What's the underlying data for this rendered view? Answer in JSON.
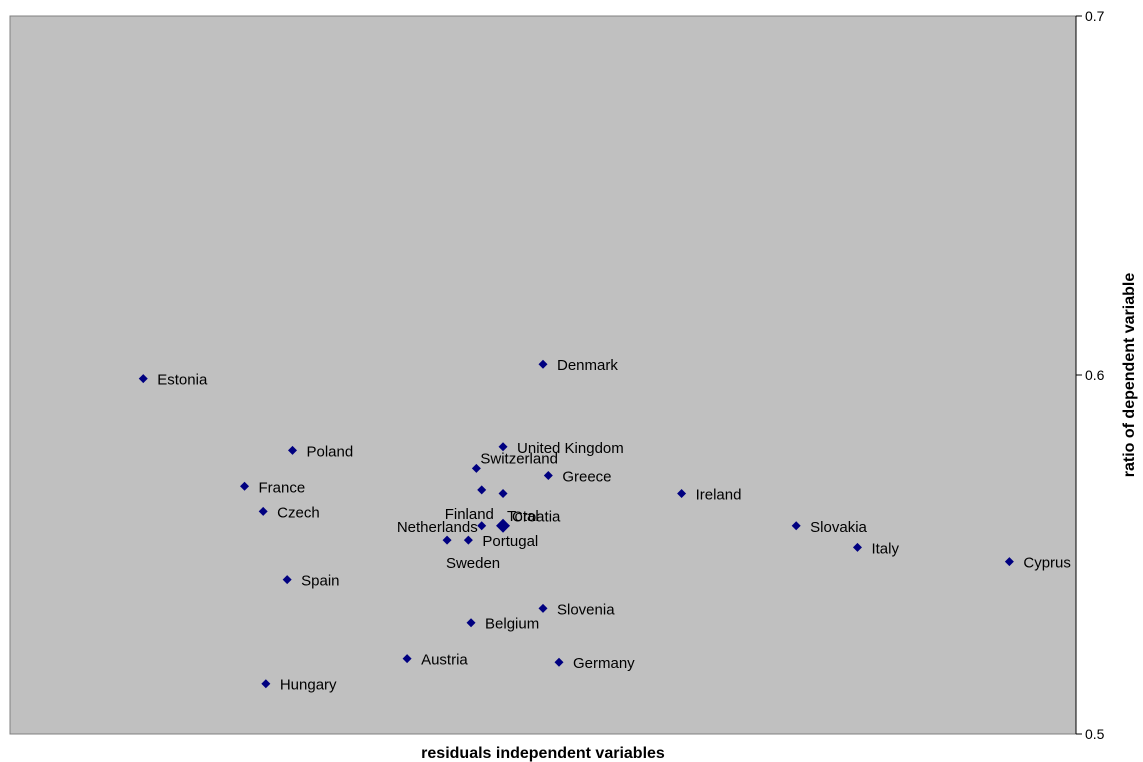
{
  "chart_data": {
    "type": "scatter",
    "title": "",
    "xlabel": "residuals independent variables",
    "ylabel": "ratio of dependent variable",
    "ylim": [
      0.5,
      0.7
    ],
    "yticks": [
      "0.5",
      "0.6",
      "0.7"
    ],
    "y_axis_side": "right",
    "x_axis_ticks": "none",
    "grid": false,
    "legend": "none",
    "colors": {
      "plot_background": "#c0c0c0",
      "marker": "#000080",
      "border": "#808080"
    },
    "points": [
      {
        "label": "Estonia",
        "x": -0.6,
        "y": 0.599,
        "label_pos": "right"
      },
      {
        "label": "Denmark",
        "x": 0.15,
        "y": 0.603,
        "label_pos": "right"
      },
      {
        "label": "Poland",
        "x": -0.32,
        "y": 0.579,
        "label_pos": "right"
      },
      {
        "label": "United Kingdom",
        "x": 0.075,
        "y": 0.58,
        "label_pos": "right"
      },
      {
        "label": "Switzerland",
        "x": 0.025,
        "y": 0.574,
        "label_pos": "right-up"
      },
      {
        "label": "Greece",
        "x": 0.16,
        "y": 0.572,
        "label_pos": "right"
      },
      {
        "label": "France",
        "x": -0.41,
        "y": 0.569,
        "label_pos": "right"
      },
      {
        "label": "Finland",
        "x": 0.035,
        "y": 0.568,
        "label_pos": "below-left"
      },
      {
        "label": "Croatia",
        "x": 0.075,
        "y": 0.567,
        "label_pos": "below-right"
      },
      {
        "label": "Ireland",
        "x": 0.41,
        "y": 0.567,
        "label_pos": "right"
      },
      {
        "label": "Czech",
        "x": -0.375,
        "y": 0.562,
        "label_pos": "right"
      },
      {
        "label": "Total",
        "x": 0.075,
        "y": 0.558,
        "label_pos": "right-up",
        "size": "large"
      },
      {
        "label": "Netherlands",
        "x": 0.035,
        "y": 0.558,
        "label_pos": "left"
      },
      {
        "label": "Slovakia",
        "x": 0.625,
        "y": 0.558,
        "label_pos": "right"
      },
      {
        "label": "Sweden",
        "x": -0.03,
        "y": 0.554,
        "label_pos": "below"
      },
      {
        "label": "Portugal",
        "x": 0.01,
        "y": 0.554,
        "label_pos": "right"
      },
      {
        "label": "Italy",
        "x": 0.74,
        "y": 0.552,
        "label_pos": "right"
      },
      {
        "label": "Cyprus",
        "x": 1.025,
        "y": 0.548,
        "label_pos": "right"
      },
      {
        "label": "Spain",
        "x": -0.33,
        "y": 0.543,
        "label_pos": "right"
      },
      {
        "label": "Slovenia",
        "x": 0.15,
        "y": 0.535,
        "label_pos": "right"
      },
      {
        "label": "Belgium",
        "x": 0.015,
        "y": 0.531,
        "label_pos": "right"
      },
      {
        "label": "Austria",
        "x": -0.105,
        "y": 0.521,
        "label_pos": "right"
      },
      {
        "label": "Germany",
        "x": 0.18,
        "y": 0.52,
        "label_pos": "right"
      },
      {
        "label": "Hungary",
        "x": -0.37,
        "y": 0.514,
        "label_pos": "right"
      }
    ]
  }
}
